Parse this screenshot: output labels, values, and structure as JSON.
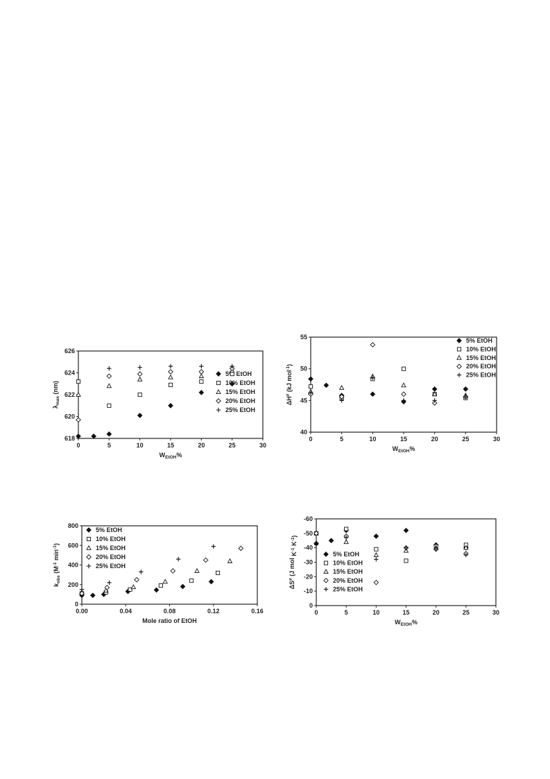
{
  "chart_data": [
    {
      "type": "scatter",
      "ylabel": "λmax (nm)",
      "ylabel_main": "λ",
      "ylabel_sub": "max",
      "ylabel_rest": " (nm)",
      "xlabel_main": "W",
      "xlabel_sub": "EtOH",
      "xlabel_rest": "%",
      "xlim": [
        0,
        30
      ],
      "ylim": [
        618,
        626
      ],
      "xticks": [
        0,
        5,
        10,
        15,
        20,
        25,
        30
      ],
      "yticks": [
        618,
        620,
        622,
        624,
        626
      ],
      "legend_position": "right",
      "series": [
        {
          "name": "5% EtOH",
          "marker": "diamond-filled",
          "x": [
            0,
            2.5,
            5,
            10,
            15,
            20,
            25
          ],
          "y": [
            618.2,
            618.2,
            618.4,
            620.1,
            621.0,
            622.2,
            623.0
          ]
        },
        {
          "name": "10% EtOH",
          "marker": "square-open",
          "x": [
            0,
            5,
            10,
            15,
            20,
            25
          ],
          "y": [
            623.2,
            621.0,
            622.0,
            622.9,
            623.2,
            623.9
          ]
        },
        {
          "name": "15% EtOH",
          "marker": "triangle-open",
          "x": [
            0,
            5,
            10,
            15,
            20,
            25
          ],
          "y": [
            622.0,
            622.8,
            623.4,
            623.6,
            623.7,
            624.2
          ]
        },
        {
          "name": "20% EtOH",
          "marker": "diamond-open",
          "x": [
            0,
            5,
            10,
            15,
            20,
            25
          ],
          "y": [
            619.7,
            623.7,
            623.9,
            624.1,
            624.1,
            624.4
          ]
        },
        {
          "name": "25% EtOH",
          "marker": "plus",
          "x": [
            0,
            5,
            10,
            15,
            20,
            25
          ],
          "y": [
            618.2,
            624.4,
            624.5,
            624.6,
            624.6,
            624.6
          ]
        }
      ]
    },
    {
      "type": "scatter",
      "ylabel_main": "ΔH",
      "ylabel_sup": "≠",
      "ylabel_rest": " (kJ mol",
      "ylabel_sup2": "-1",
      "ylabel_end": ")",
      "xlabel_main": "W",
      "xlabel_sub": "EtOH",
      "xlabel_rest": "%",
      "xlim": [
        0,
        30
      ],
      "ylim": [
        40,
        55
      ],
      "xticks": [
        0,
        5,
        10,
        15,
        20,
        25,
        30
      ],
      "yticks": [
        40,
        45,
        50,
        55
      ],
      "legend_position": "top-right",
      "series": [
        {
          "name": "5% EtOH",
          "marker": "diamond-filled",
          "x": [
            0,
            2.5,
            5,
            10,
            15,
            20,
            25
          ],
          "y": [
            48.4,
            47.4,
            45.8,
            46.0,
            44.8,
            46.8,
            46.8
          ]
        },
        {
          "name": "10% EtOH",
          "marker": "square-open",
          "x": [
            0,
            5,
            10,
            15,
            20,
            25
          ],
          "y": [
            47.2,
            45.4,
            48.4,
            50.0,
            46.0,
            45.4
          ]
        },
        {
          "name": "15% EtOH",
          "marker": "triangle-open",
          "x": [
            0,
            5,
            10,
            15,
            20,
            25
          ],
          "y": [
            46.4,
            47.0,
            48.8,
            47.4,
            46.0,
            45.8
          ]
        },
        {
          "name": "20% EtOH",
          "marker": "diamond-open",
          "x": [
            0,
            5,
            10,
            15,
            20,
            25
          ],
          "y": [
            46.0,
            45.6,
            53.8,
            46.0,
            44.6,
            45.6
          ]
        },
        {
          "name": "25% EtOH",
          "marker": "plus",
          "x": [
            0,
            5,
            10,
            15,
            20,
            25
          ],
          "y": [
            46.2,
            45.0,
            48.6,
            45.0,
            45.0,
            45.6
          ]
        }
      ]
    },
    {
      "type": "scatter",
      "ylabel_main": "k",
      "ylabel_sub": "obs",
      "ylabel_rest": " (M",
      "ylabel_sup": "-1",
      "ylabel_mid": " min",
      "ylabel_sup2": "-1",
      "ylabel_end": ")",
      "xlabel": "Mole ratio of EtOH",
      "xlim": [
        0,
        0.16
      ],
      "ylim": [
        0,
        800
      ],
      "xticks": [
        0.0,
        0.04,
        0.08,
        0.12,
        0.16
      ],
      "xtick_labels": [
        "0.00",
        "0.04",
        "0.08",
        "0.12",
        "0.16"
      ],
      "yticks": [
        0,
        200,
        400,
        600,
        800
      ],
      "legend_position": "top-left",
      "series": [
        {
          "name": "5% EtOH",
          "marker": "diamond-filled",
          "x": [
            0,
            0.01,
            0.02,
            0.042,
            0.068,
            0.092,
            0.118
          ],
          "y": [
            90,
            90,
            100,
            130,
            145,
            180,
            230
          ]
        },
        {
          "name": "10% EtOH",
          "marker": "square-open",
          "x": [
            0,
            0.022,
            0.044,
            0.072,
            0.1,
            0.124
          ],
          "y": [
            110,
            120,
            150,
            190,
            240,
            320
          ]
        },
        {
          "name": "15% EtOH",
          "marker": "triangle-open",
          "x": [
            0,
            0.022,
            0.047,
            0.076,
            0.105,
            0.135
          ],
          "y": [
            120,
            140,
            175,
            230,
            340,
            440
          ]
        },
        {
          "name": "20% EtOH",
          "marker": "diamond-open",
          "x": [
            0,
            0.023,
            0.05,
            0.083,
            0.113,
            0.145
          ],
          "y": [
            110,
            170,
            250,
            340,
            450,
            570
          ]
        },
        {
          "name": "25% EtOH",
          "marker": "plus",
          "x": [
            0,
            0.025,
            0.054,
            0.088,
            0.12
          ],
          "y": [
            150,
            220,
            330,
            460,
            590
          ]
        }
      ]
    },
    {
      "type": "scatter",
      "ylabel_main": "ΔS",
      "ylabel_sup": "≠",
      "ylabel_rest": " (J mol",
      "ylabel_sup2": "-1",
      "ylabel_mid": " K",
      "ylabel_sup3": "-1",
      "ylabel_end": ")",
      "xlabel_main": "W",
      "xlabel_sub": "EtOH",
      "xlabel_rest": "%",
      "xlim": [
        0,
        30
      ],
      "ylim": [
        0,
        -60
      ],
      "xticks": [
        0,
        5,
        10,
        15,
        20,
        25,
        30
      ],
      "yticks": [
        0,
        -10,
        -20,
        -30,
        -40,
        -50,
        -60
      ],
      "legend_position": "left",
      "series": [
        {
          "name": "5% EtOH",
          "marker": "diamond-filled",
          "x": [
            0,
            2.5,
            5,
            10,
            15,
            20,
            25
          ],
          "y": [
            -43,
            -45,
            -52,
            -48,
            -52,
            -42,
            -40
          ]
        },
        {
          "name": "10% EtOH",
          "marker": "square-open",
          "x": [
            0,
            5,
            10,
            15,
            20,
            25
          ],
          "y": [
            -50,
            -53,
            -39,
            -31,
            -41,
            -42
          ]
        },
        {
          "name": "15% EtOH",
          "marker": "triangle-open",
          "x": [
            0,
            5,
            10,
            15,
            20,
            25
          ],
          "y": [
            -50,
            -44,
            -35,
            -38,
            -40,
            -40
          ]
        },
        {
          "name": "20% EtOH",
          "marker": "diamond-open",
          "x": [
            0,
            5,
            10,
            15,
            20,
            25
          ],
          "y": [
            -50,
            -48,
            -16,
            -40,
            -39,
            -36
          ]
        },
        {
          "name": "25% EtOH",
          "marker": "plus",
          "x": [
            0,
            5,
            10,
            15,
            20,
            25
          ],
          "y": [
            -42,
            -47,
            -32,
            -40,
            -39,
            -35
          ]
        }
      ]
    }
  ]
}
